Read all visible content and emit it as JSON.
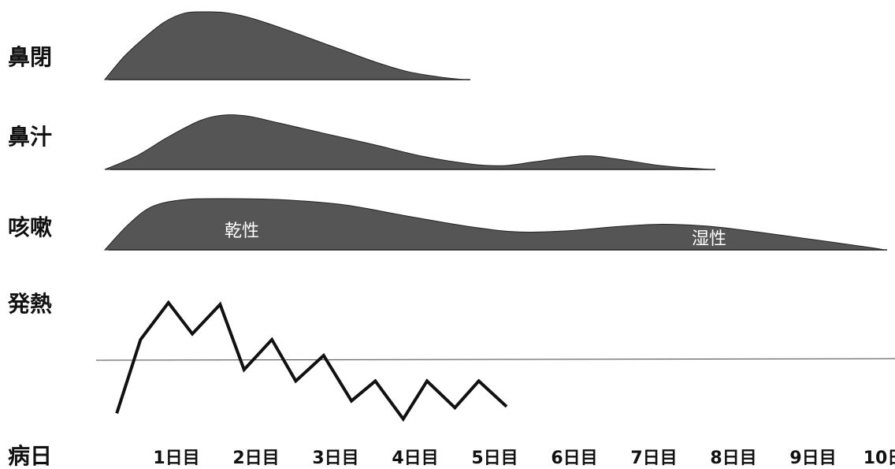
{
  "chart_data": {
    "type": "area",
    "x_categories": [
      "1日目",
      "2日目",
      "3日目",
      "4日目",
      "5日目",
      "6日目",
      "7日目",
      "8日目",
      "9日目",
      "10日目"
    ],
    "x_axis_label": "病日",
    "series": [
      {
        "name": "鼻閉",
        "kind": "area",
        "points": [
          [
            0.0,
            0.0
          ],
          [
            0.25,
            0.35
          ],
          [
            0.5,
            0.62
          ],
          [
            0.75,
            0.85
          ],
          [
            1.0,
            0.98
          ],
          [
            1.25,
            1.0
          ],
          [
            1.5,
            0.99
          ],
          [
            1.8,
            0.92
          ],
          [
            2.2,
            0.77
          ],
          [
            2.6,
            0.6
          ],
          [
            3.0,
            0.43
          ],
          [
            3.4,
            0.26
          ],
          [
            3.8,
            0.12
          ],
          [
            4.2,
            0.04
          ],
          [
            4.5,
            0.0
          ]
        ]
      },
      {
        "name": "鼻汁",
        "kind": "area",
        "points": [
          [
            0.0,
            0.0
          ],
          [
            0.4,
            0.25
          ],
          [
            0.8,
            0.6
          ],
          [
            1.2,
            0.9
          ],
          [
            1.5,
            1.0
          ],
          [
            1.8,
            0.98
          ],
          [
            2.2,
            0.85
          ],
          [
            2.8,
            0.65
          ],
          [
            3.4,
            0.45
          ],
          [
            4.0,
            0.24
          ],
          [
            4.6,
            0.1
          ],
          [
            5.0,
            0.07
          ],
          [
            5.4,
            0.14
          ],
          [
            6.0,
            0.25
          ],
          [
            6.4,
            0.2
          ],
          [
            7.0,
            0.07
          ],
          [
            7.6,
            0.0
          ]
        ]
      },
      {
        "name": "咳嗽",
        "kind": "area",
        "annotations": [
          "乾性",
          "湿性"
        ],
        "points": [
          [
            0.0,
            0.0
          ],
          [
            0.3,
            0.5
          ],
          [
            0.6,
            0.85
          ],
          [
            1.0,
            0.98
          ],
          [
            1.5,
            1.0
          ],
          [
            2.2,
            0.98
          ],
          [
            3.0,
            0.88
          ],
          [
            3.8,
            0.66
          ],
          [
            4.6,
            0.45
          ],
          [
            5.2,
            0.35
          ],
          [
            5.8,
            0.37
          ],
          [
            6.4,
            0.45
          ],
          [
            7.0,
            0.5
          ],
          [
            7.6,
            0.46
          ],
          [
            8.2,
            0.35
          ],
          [
            9.0,
            0.18
          ],
          [
            9.6,
            0.05
          ],
          [
            9.8,
            0.0
          ]
        ]
      },
      {
        "name": "発熱",
        "kind": "line",
        "points": [
          [
            0.15,
            -0.95
          ],
          [
            0.45,
            0.35
          ],
          [
            0.8,
            1.0
          ],
          [
            1.1,
            0.45
          ],
          [
            1.45,
            0.97
          ],
          [
            1.75,
            -0.18
          ],
          [
            2.1,
            0.35
          ],
          [
            2.4,
            -0.38
          ],
          [
            2.75,
            0.07
          ],
          [
            3.1,
            -0.73
          ],
          [
            3.4,
            -0.38
          ],
          [
            3.75,
            -1.05
          ],
          [
            4.05,
            -0.38
          ],
          [
            4.4,
            -0.85
          ],
          [
            4.7,
            -0.38
          ],
          [
            5.05,
            -0.83
          ]
        ],
        "reference_line": 0
      }
    ]
  }
}
